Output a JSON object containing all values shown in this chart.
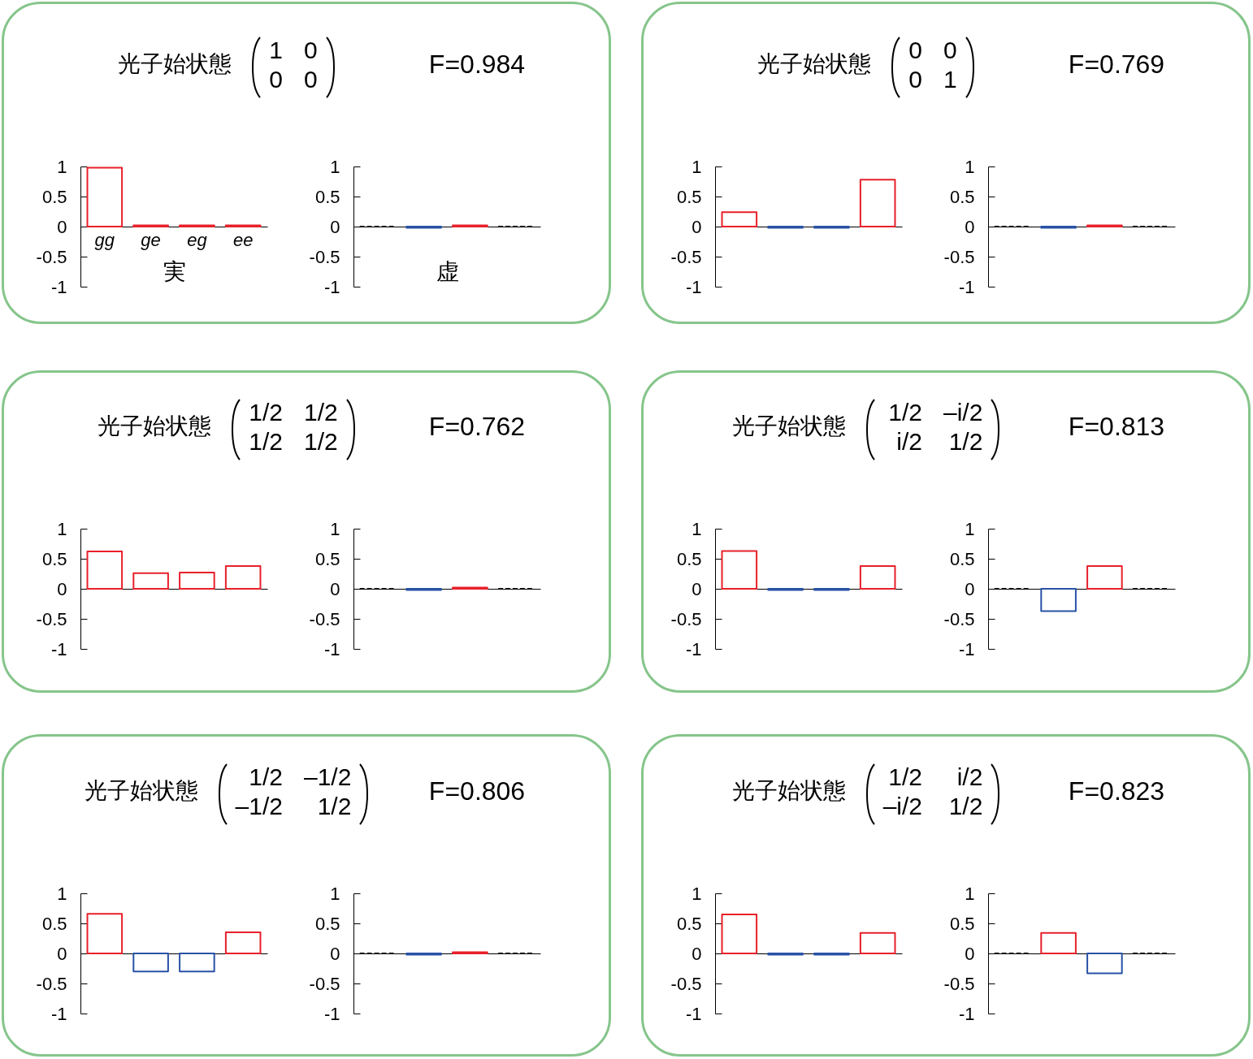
{
  "chart_data": [
    {
      "type": "bar",
      "title": "光子始状態",
      "annotations": [
        "1",
        "0",
        "0",
        "0"
      ],
      "xlabel": "実",
      "categories": [
        "gg",
        "ge",
        "eg",
        "ee"
      ],
      "series": [
        {
          "color": "#e8202a",
          "values": [
            0.98,
            0.02,
            0.02,
            0.02
          ]
        }
      ],
      "ylim": [
        -1,
        1
      ],
      "yticks": [
        -1,
        -0.5,
        0,
        0.5,
        1
      ]
    },
    {
      "type": "bar",
      "annotations": [
        "F=0.984"
      ],
      "xlabel": "虚",
      "categories": [
        null,
        null,
        null,
        null
      ],
      "series": [
        {
          "color": "#000000",
          "line_style": "dashed",
          "values": [
            0,
            null,
            null,
            0
          ]
        },
        {
          "color": "#2852a6",
          "values": [
            null,
            -0.02,
            null,
            null
          ]
        },
        {
          "color": "#e8202a",
          "values": [
            null,
            null,
            0.02,
            null
          ]
        }
      ],
      "ylim": [
        -1,
        1
      ],
      "yticks": [
        -1,
        -0.5,
        0,
        0.5,
        1
      ]
    },
    {
      "type": "bar",
      "title": "光子始状態",
      "annotations": [
        "0",
        "0",
        "0",
        "1"
      ],
      "categories": [
        null,
        null,
        null,
        null
      ],
      "series": [
        {
          "color": "#e8202a",
          "values": [
            0.24,
            null,
            null,
            0.78
          ]
        },
        {
          "color": "#2852a6",
          "values": [
            null,
            -0.02,
            -0.02,
            null
          ]
        }
      ],
      "ylim": [
        -1,
        1
      ],
      "yticks": [
        -1,
        -0.5,
        0,
        0.5,
        1
      ]
    },
    {
      "type": "bar",
      "annotations": [
        "F=0.769"
      ],
      "categories": [
        null,
        null,
        null,
        null
      ],
      "series": [
        {
          "color": "#000000",
          "line_style": "dashed",
          "values": [
            0,
            null,
            null,
            0
          ]
        },
        {
          "color": "#2852a6",
          "values": [
            null,
            -0.02,
            null,
            null
          ]
        },
        {
          "color": "#e8202a",
          "values": [
            null,
            null,
            0.02,
            null
          ]
        }
      ],
      "ylim": [
        -1,
        1
      ],
      "yticks": [
        -1,
        -0.5,
        0,
        0.5,
        1
      ]
    },
    {
      "type": "bar",
      "title": "光子始状態",
      "annotations": [
        "1/2",
        "1/2",
        "1/2",
        "1/2"
      ],
      "categories": [
        null,
        null,
        null,
        null
      ],
      "series": [
        {
          "color": "#e8202a",
          "values": [
            0.62,
            0.26,
            0.27,
            0.38
          ]
        }
      ],
      "ylim": [
        -1,
        1
      ],
      "yticks": [
        -1,
        -0.5,
        0,
        0.5,
        1
      ]
    },
    {
      "type": "bar",
      "annotations": [
        "F=0.762"
      ],
      "categories": [
        null,
        null,
        null,
        null
      ],
      "series": [
        {
          "color": "#000000",
          "line_style": "dashed",
          "values": [
            0,
            null,
            null,
            0
          ]
        },
        {
          "color": "#2852a6",
          "values": [
            null,
            -0.02,
            null,
            null
          ]
        },
        {
          "color": "#e8202a",
          "values": [
            null,
            null,
            0.02,
            null
          ]
        }
      ],
      "ylim": [
        -1,
        1
      ],
      "yticks": [
        -1,
        -0.5,
        0,
        0.5,
        1
      ]
    },
    {
      "type": "bar",
      "title": "光子始状態",
      "annotations": [
        "1/2",
        "–i/2",
        "i/2",
        "1/2"
      ],
      "categories": [
        null,
        null,
        null,
        null
      ],
      "series": [
        {
          "color": "#e8202a",
          "values": [
            0.63,
            null,
            null,
            0.38
          ]
        },
        {
          "color": "#2852a6",
          "values": [
            null,
            -0.02,
            -0.02,
            null
          ]
        }
      ],
      "ylim": [
        -1,
        1
      ],
      "yticks": [
        -1,
        -0.5,
        0,
        0.5,
        1
      ]
    },
    {
      "type": "bar",
      "annotations": [
        "F=0.813"
      ],
      "categories": [
        null,
        null,
        null,
        null
      ],
      "series": [
        {
          "color": "#000000",
          "line_style": "dashed",
          "values": [
            0,
            null,
            null,
            0
          ]
        },
        {
          "color": "#2852a6",
          "values": [
            null,
            -0.37,
            null,
            null
          ]
        },
        {
          "color": "#e8202a",
          "values": [
            null,
            null,
            0.38,
            null
          ]
        }
      ],
      "ylim": [
        -1,
        1
      ],
      "yticks": [
        -1,
        -0.5,
        0,
        0.5,
        1
      ]
    },
    {
      "type": "bar",
      "title": "光子始状態",
      "annotations": [
        "1/2",
        "–1/2",
        "–1/2",
        "1/2"
      ],
      "categories": [
        null,
        null,
        null,
        null
      ],
      "series": [
        {
          "color": "#e8202a",
          "values": [
            0.66,
            null,
            null,
            0.35
          ]
        },
        {
          "color": "#2852a6",
          "values": [
            null,
            -0.3,
            -0.3,
            null
          ]
        }
      ],
      "ylim": [
        -1,
        1
      ],
      "yticks": [
        -1,
        -0.5,
        0,
        0.5,
        1
      ]
    },
    {
      "type": "bar",
      "annotations": [
        "F=0.806"
      ],
      "categories": [
        null,
        null,
        null,
        null
      ],
      "series": [
        {
          "color": "#000000",
          "line_style": "dashed",
          "values": [
            0,
            null,
            null,
            0
          ]
        },
        {
          "color": "#2852a6",
          "values": [
            null,
            -0.02,
            null,
            null
          ]
        },
        {
          "color": "#e8202a",
          "values": [
            null,
            null,
            0.02,
            null
          ]
        }
      ],
      "ylim": [
        -1,
        1
      ],
      "yticks": [
        -1,
        -0.5,
        0,
        0.5,
        1
      ]
    },
    {
      "type": "bar",
      "title": "光子始状態",
      "annotations": [
        "1/2",
        "i/2",
        "–i/2",
        "1/2"
      ],
      "categories": [
        null,
        null,
        null,
        null
      ],
      "series": [
        {
          "color": "#e8202a",
          "values": [
            0.65,
            null,
            null,
            0.34
          ]
        },
        {
          "color": "#2852a6",
          "values": [
            null,
            -0.02,
            -0.02,
            null
          ]
        }
      ],
      "ylim": [
        -1,
        1
      ],
      "yticks": [
        -1,
        -0.5,
        0,
        0.5,
        1
      ]
    },
    {
      "type": "bar",
      "annotations": [
        "F=0.823"
      ],
      "categories": [
        null,
        null,
        null,
        null
      ],
      "series": [
        {
          "color": "#000000",
          "line_style": "dashed",
          "values": [
            0,
            null,
            null,
            0
          ]
        },
        {
          "color": "#e8202a",
          "values": [
            null,
            0.34,
            null,
            null
          ]
        },
        {
          "color": "#2852a6",
          "values": [
            null,
            null,
            -0.33,
            null
          ]
        }
      ],
      "ylim": [
        -1,
        1
      ],
      "yticks": [
        -1,
        -0.5,
        0,
        0.5,
        1
      ]
    }
  ]
}
